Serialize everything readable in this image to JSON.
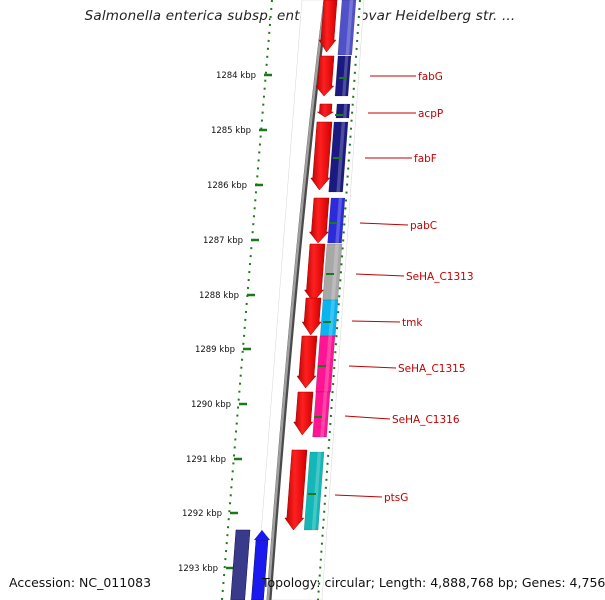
{
  "title": "Salmonella enterica subsp. enterica serovar Heidelberg str. ...",
  "footer": {
    "accession": "Accession: NC_011083",
    "topology": "Topology: circular; Length: 4,888,768 bp; Genes: 4,756"
  },
  "scale_labels": [
    "1284 kbp",
    "1285 kbp",
    "1286 kbp",
    "1287 kbp",
    "1288 kbp",
    "1289 kbp",
    "1290 kbp",
    "1291 kbp",
    "1292 kbp",
    "1293 kbp"
  ],
  "gene_labels": [
    "fabG",
    "acpP",
    "fabF",
    "pabC",
    "SeHA_C1313",
    "tmk",
    "SeHA_C1315",
    "SeHA_C1316",
    "ptsG"
  ],
  "colors": {
    "forward_strand": "#ff0000",
    "label": "#c00000",
    "tick": "#1a7a1a",
    "backbone": "#7a7a7a",
    "cog_dark_blue": "#1a1a80",
    "cog_blue": "#2b2bd9",
    "cog_gray": "#a8a8a8",
    "cog_cyan": "#0ab4ee",
    "cog_pink": "#ff1493",
    "cog_teal": "#14b7b7"
  }
}
